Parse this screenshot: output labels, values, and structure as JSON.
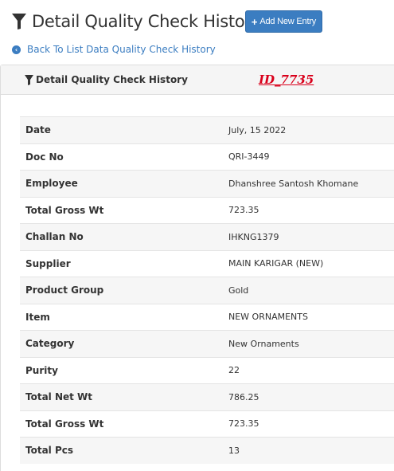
{
  "header": {
    "title": "Detail Quality Check History",
    "add_button_label": "Add New Entry"
  },
  "back_link": {
    "label": "Back To List Data Quality Check History"
  },
  "panel": {
    "title": "Detail Quality Check History",
    "id_label": "ID_7735"
  },
  "details": [
    {
      "label": "Date",
      "value": "July, 15 2022"
    },
    {
      "label": "Doc No",
      "value": "QRI-3449"
    },
    {
      "label": "Employee",
      "value": "Dhanshree Santosh Khomane"
    },
    {
      "label": "Total Gross Wt",
      "value": "723.35"
    },
    {
      "label": "Challan No",
      "value": "IHKNG1379"
    },
    {
      "label": "Supplier",
      "value": "MAIN KARIGAR (NEW)"
    },
    {
      "label": "Product Group",
      "value": "Gold"
    },
    {
      "label": "Item",
      "value": "NEW ORNAMENTS"
    },
    {
      "label": "Category",
      "value": "New Ornaments"
    },
    {
      "label": "Purity",
      "value": "22"
    },
    {
      "label": "Total Net Wt",
      "value": "786.25"
    },
    {
      "label": "Total Gross Wt",
      "value": "723.35"
    },
    {
      "label": "Total Pcs",
      "value": "13"
    }
  ],
  "colors": {
    "accent": "#3b7dc1",
    "id_red": "#d9001b"
  },
  "icons": {
    "title": "filter-icon",
    "add": "plus-icon",
    "back": "chevron-left-circle-icon"
  }
}
